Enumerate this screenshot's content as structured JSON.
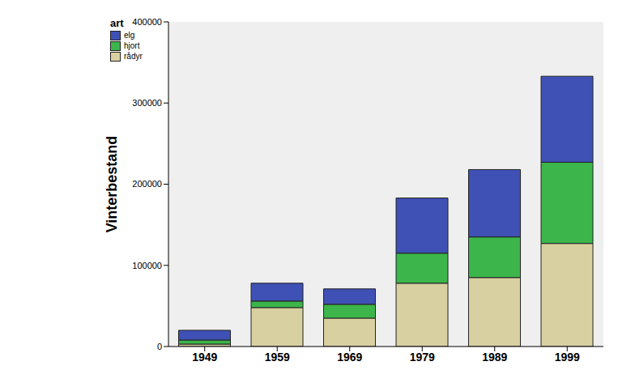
{
  "chart_data": {
    "type": "bar",
    "stacked": true,
    "y_label": "Vinterbestand",
    "legend_title": "art",
    "legend": "upper left",
    "grid": false,
    "categories": [
      "1949",
      "1959",
      "1969",
      "1979",
      "1989",
      "1999"
    ],
    "series": [
      {
        "name": "elg",
        "color": "#3f51b5",
        "values": [
          12000,
          22000,
          19000,
          68000,
          83000,
          106000
        ]
      },
      {
        "name": "hjort",
        "color": "#3cb54a",
        "values": [
          5000,
          8000,
          17000,
          37000,
          50000,
          100000
        ]
      },
      {
        "name": "rådyr",
        "color": "#d9d0a2",
        "values": [
          3000,
          48000,
          35000,
          78000,
          85000,
          127000
        ]
      }
    ],
    "ylim": [
      0,
      400000
    ],
    "yticks": [
      0,
      100000,
      200000,
      300000,
      400000
    ]
  }
}
